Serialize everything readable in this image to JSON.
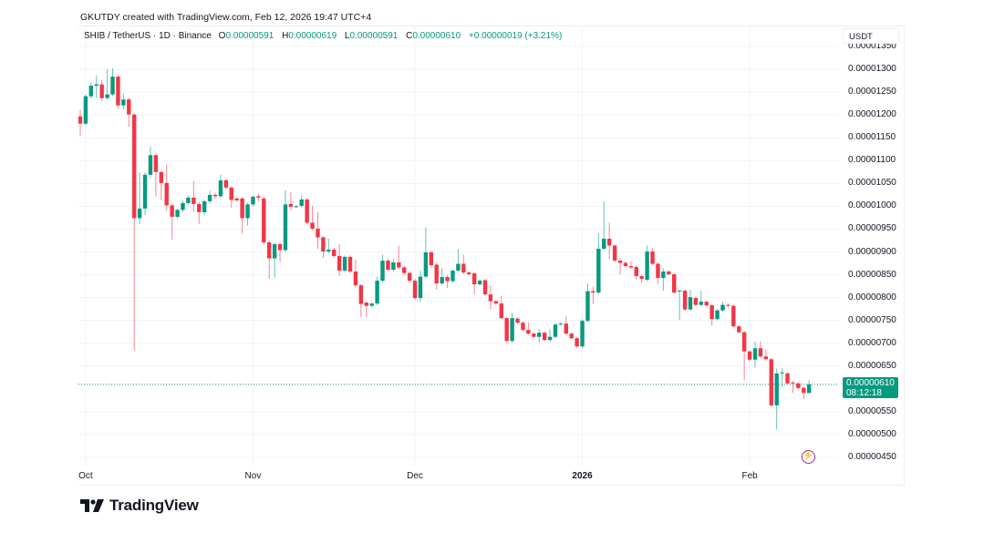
{
  "credit": "GKUTDY created with TradingView.com, Feb 12, 2026 19:47 UTC+4",
  "legend": {
    "symbol": "SHIB / TetherUS · 1D · Binance",
    "o_label": "O",
    "o_value": "0.00000591",
    "h_label": "H",
    "h_value": "0.00000619",
    "l_label": "L",
    "l_value": "0.00000591",
    "c_label": "C",
    "c_value": "0.00000610",
    "change": "+0.00000019 (+3.21%)"
  },
  "price_axis": {
    "unit": "USDT",
    "current_price": "0.00000610",
    "countdown": "08:12:18"
  },
  "brand": "TradingView",
  "colors": {
    "up": "#089981",
    "down": "#f23645",
    "grid": "#f0f3fa",
    "accent": "#9c27b0"
  },
  "icons": {
    "bolt": "lightning-icon",
    "logo": "tradingview-logo"
  },
  "chart_data": {
    "type": "candlestick",
    "title": "SHIB / TetherUS · 1D · Binance",
    "ylim": [
      4.3e-06,
      1.394e-05
    ],
    "y_ticks": [
      "0.00001350",
      "0.00001300",
      "0.00001250",
      "0.00001200",
      "0.00001150",
      "0.00001100",
      "0.00001050",
      "0.00001000",
      "0.00000950",
      "0.00000900",
      "0.00000850",
      "0.00000800",
      "0.00000750",
      "0.00000700",
      "0.00000650",
      "0.00000550",
      "0.00000500",
      "0.00000450"
    ],
    "x_ticks": [
      {
        "label": "Oct",
        "date": "2025-10-01",
        "bold": false
      },
      {
        "label": "Nov",
        "date": "2025-11-01",
        "bold": false
      },
      {
        "label": "Dec",
        "date": "2025-12-01",
        "bold": false
      },
      {
        "label": "2026",
        "date": "2026-01-01",
        "bold": true
      },
      {
        "label": "Feb",
        "date": "2026-02-01",
        "bold": false
      }
    ],
    "grid": true,
    "last_price": 6.1e-06,
    "columns": [
      "date",
      "open",
      "high",
      "low",
      "close"
    ],
    "candles": [
      [
        "2025-09-30",
        1.197e-05,
        1.211e-05,
        1.154e-05,
        1.181e-05
      ],
      [
        "2025-10-01",
        1.181e-05,
        1.245e-05,
        1.177e-05,
        1.241e-05
      ],
      [
        "2025-10-02",
        1.241e-05,
        1.271e-05,
        1.236e-05,
        1.264e-05
      ],
      [
        "2025-10-03",
        1.264e-05,
        1.287e-05,
        1.237e-05,
        1.267e-05
      ],
      [
        "2025-10-04",
        1.267e-05,
        1.277e-05,
        1.23e-05,
        1.237e-05
      ],
      [
        "2025-10-05",
        1.237e-05,
        1.301e-05,
        1.233e-05,
        1.245e-05
      ],
      [
        "2025-10-06",
        1.245e-05,
        1.302e-05,
        1.241e-05,
        1.284e-05
      ],
      [
        "2025-10-07",
        1.284e-05,
        1.287e-05,
        1.214e-05,
        1.221e-05
      ],
      [
        "2025-10-08",
        1.221e-05,
        1.247e-05,
        1.212e-05,
        1.234e-05
      ],
      [
        "2025-10-09",
        1.234e-05,
        1.238e-05,
        1.174e-05,
        1.201e-05
      ],
      [
        "2025-10-10",
        1.201e-05,
        1.204e-05,
        6.84e-06,
        9.74e-06
      ],
      [
        "2025-10-11",
        9.74e-06,
        1.074e-05,
        9.61e-06,
        9.95e-06
      ],
      [
        "2025-10-12",
        9.95e-06,
        1.075e-05,
        9.8e-06,
        1.069e-05
      ],
      [
        "2025-10-13",
        1.069e-05,
        1.131e-05,
        1.062e-05,
        1.112e-05
      ],
      [
        "2025-10-14",
        1.112e-05,
        1.117e-05,
        1.021e-05,
        1.075e-05
      ],
      [
        "2025-10-15",
        1.075e-05,
        1.078e-05,
        1.014e-05,
        1.051e-05
      ],
      [
        "2025-10-16",
        1.051e-05,
        1.091e-05,
        9.91e-06,
        1.002e-05
      ],
      [
        "2025-10-17",
        1.002e-05,
        1.006e-05,
        9.27e-06,
        9.77e-06
      ],
      [
        "2025-10-18",
        9.77e-06,
        9.95e-06,
        9.72e-06,
        9.92e-06
      ],
      [
        "2025-10-19",
        9.92e-06,
        1.012e-05,
        9.88e-06,
        1.007e-05
      ],
      [
        "2025-10-20",
        1.007e-05,
        1.024e-05,
        1.003e-05,
        1.019e-05
      ],
      [
        "2025-10-21",
        1.019e-05,
        1.055e-05,
        9.87e-06,
        1.005e-05
      ],
      [
        "2025-10-22",
        1.005e-05,
        1.01e-05,
        9.61e-06,
        9.87e-06
      ],
      [
        "2025-10-23",
        9.87e-06,
        1.014e-05,
        9.81e-06,
        1.011e-05
      ],
      [
        "2025-10-24",
        1.011e-05,
        1.034e-05,
        1.006e-05,
        1.025e-05
      ],
      [
        "2025-10-25",
        1.025e-05,
        1.03e-05,
        1.016e-05,
        1.022e-05
      ],
      [
        "2025-10-26",
        1.022e-05,
        1.069e-05,
        1.018e-05,
        1.057e-05
      ],
      [
        "2025-10-27",
        1.057e-05,
        1.061e-05,
        1.036e-05,
        1.041e-05
      ],
      [
        "2025-10-28",
        1.041e-05,
        1.044e-05,
        9.97e-06,
        1.014e-05
      ],
      [
        "2025-10-29",
        1.017e-05,
        1.02e-05,
        1.01e-05,
        1.013e-05
      ],
      [
        "2025-10-30",
        1.017e-05,
        1.021e-05,
        9.4e-06,
        9.74e-06
      ],
      [
        "2025-10-31",
        9.74e-06,
        1.008e-05,
        9.58e-06,
        1.004e-05
      ],
      [
        "2025-11-01",
        1.004e-05,
        1.024e-05,
        9.99e-06,
        1.021e-05
      ],
      [
        "2025-11-02",
        1.022e-05,
        1.027e-05,
        1.01e-05,
        1.019e-05
      ],
      [
        "2025-11-03",
        1.017e-05,
        1.022e-05,
        9.16e-06,
        9.21e-06
      ],
      [
        "2025-11-04",
        9.21e-06,
        9.25e-06,
        8.41e-06,
        8.86e-06
      ],
      [
        "2025-11-05",
        8.86e-06,
        9.2e-06,
        8.44e-06,
        9.17e-06
      ],
      [
        "2025-11-06",
        9.17e-06,
        9.21e-06,
        8.78e-06,
        9.04e-06
      ],
      [
        "2025-11-07",
        9.04e-06,
        1.035e-05,
        9e-06,
        1.004e-05
      ],
      [
        "2025-11-08",
        1.005e-05,
        1.031e-05,
        9.9e-06,
        9.99e-06
      ],
      [
        "2025-11-09",
        9.99e-06,
        1.003e-05,
        9.96e-06,
        1e-05
      ],
      [
        "2025-11-10",
        1.001e-05,
        1.024e-05,
        9.97e-06,
        1.015e-05
      ],
      [
        "2025-11-11",
        1.015e-05,
        1.018e-05,
        9.6e-06,
        9.64e-06
      ],
      [
        "2025-11-12",
        9.64e-06,
        1.001e-05,
        9.47e-06,
        9.51e-06
      ],
      [
        "2025-11-13",
        9.51e-06,
        9.87e-06,
        9.07e-06,
        9.32e-06
      ],
      [
        "2025-11-14",
        9.32e-06,
        9.35e-06,
        8.87e-06,
        9.01e-06
      ],
      [
        "2025-11-15",
        9.01e-06,
        9.29e-06,
        8.97e-06,
        9.05e-06
      ],
      [
        "2025-11-16",
        9.05e-06,
        9.09e-06,
        8.87e-06,
        8.91e-06
      ],
      [
        "2025-11-17",
        8.91e-06,
        9.17e-06,
        8.47e-06,
        8.59e-06
      ],
      [
        "2025-11-18",
        8.59e-06,
        8.92e-06,
        8.55e-06,
        8.89e-06
      ],
      [
        "2025-11-19",
        8.89e-06,
        8.93e-06,
        8.53e-06,
        8.57e-06
      ],
      [
        "2025-11-20",
        8.57e-06,
        8.84e-06,
        8.23e-06,
        8.27e-06
      ],
      [
        "2025-11-21",
        8.27e-06,
        8.3e-06,
        7.57e-06,
        7.86e-06
      ],
      [
        "2025-11-22",
        7.89e-06,
        7.92e-06,
        7.57e-06,
        7.82e-06
      ],
      [
        "2025-11-23",
        7.82e-06,
        7.9e-06,
        7.78e-06,
        7.87e-06
      ],
      [
        "2025-11-24",
        7.87e-06,
        8.46e-06,
        7.83e-06,
        8.37e-06
      ],
      [
        "2025-11-25",
        8.37e-06,
        8.94e-06,
        8.33e-06,
        8.81e-06
      ],
      [
        "2025-11-26",
        8.81e-06,
        8.85e-06,
        8.57e-06,
        8.61e-06
      ],
      [
        "2025-11-27",
        8.61e-06,
        8.84e-06,
        8.57e-06,
        8.77e-06
      ],
      [
        "2025-11-28",
        8.77e-06,
        9.14e-06,
        8.62e-06,
        8.66e-06
      ],
      [
        "2025-11-29",
        8.66e-06,
        8.7e-06,
        8.5e-06,
        8.54e-06
      ],
      [
        "2025-11-30",
        8.54e-06,
        8.58e-06,
        8.33e-06,
        8.37e-06
      ],
      [
        "2025-12-01",
        8.37e-06,
        8.41e-06,
        7.95e-06,
        7.99e-06
      ],
      [
        "2025-12-02",
        7.99e-06,
        8.59e-06,
        7.91e-06,
        8.46e-06
      ],
      [
        "2025-12-03",
        8.46e-06,
        9.54e-06,
        8.42e-06,
        8.99e-06
      ],
      [
        "2025-12-04",
        8.99e-06,
        9.03e-06,
        8.66e-06,
        8.71e-06
      ],
      [
        "2025-12-05",
        8.72e-06,
        8.76e-06,
        8.17e-06,
        8.31e-06
      ],
      [
        "2025-12-06",
        8.31e-06,
        8.64e-06,
        8.28e-06,
        8.45e-06
      ],
      [
        "2025-12-07",
        8.45e-06,
        8.49e-06,
        8.21e-06,
        8.36e-06
      ],
      [
        "2025-12-08",
        8.36e-06,
        8.62e-06,
        8.32e-06,
        8.59e-06
      ],
      [
        "2025-12-09",
        8.59e-06,
        9.07e-06,
        8.55e-06,
        8.74e-06
      ],
      [
        "2025-12-10",
        8.74e-06,
        8.94e-06,
        8.51e-06,
        8.55e-06
      ],
      [
        "2025-12-11",
        8.55e-06,
        8.58e-06,
        8.48e-06,
        8.51e-06
      ],
      [
        "2025-12-12",
        8.53e-06,
        8.56e-06,
        8.07e-06,
        8.29e-06
      ],
      [
        "2025-12-13",
        8.29e-06,
        8.4e-06,
        8.26e-06,
        8.37e-06
      ],
      [
        "2025-12-14",
        8.38e-06,
        8.41e-06,
        8.04e-06,
        8.07e-06
      ],
      [
        "2025-12-15",
        8.07e-06,
        8.27e-06,
        7.74e-06,
        7.92e-06
      ],
      [
        "2025-12-16",
        7.92e-06,
        7.95e-06,
        7.84e-06,
        7.87e-06
      ],
      [
        "2025-12-17",
        7.87e-06,
        8.04e-06,
        7.52e-06,
        7.55e-06
      ],
      [
        "2025-12-18",
        7.55e-06,
        7.58e-06,
        7.01e-06,
        7.05e-06
      ],
      [
        "2025-12-19",
        7.05e-06,
        7.67e-06,
        7.01e-06,
        7.55e-06
      ],
      [
        "2025-12-20",
        7.54e-06,
        7.57e-06,
        7.42e-06,
        7.45e-06
      ],
      [
        "2025-12-21",
        7.45e-06,
        7.48e-06,
        7.26e-06,
        7.29e-06
      ],
      [
        "2025-12-22",
        7.29e-06,
        7.46e-06,
        7.18e-06,
        7.21e-06
      ],
      [
        "2025-12-23",
        7.21e-06,
        7.24e-06,
        7.11e-06,
        7.14e-06
      ],
      [
        "2025-12-24",
        7.14e-06,
        7.31e-06,
        7.01e-06,
        7.23e-06
      ],
      [
        "2025-12-25",
        7.23e-06,
        7.26e-06,
        7.04e-06,
        7.07e-06
      ],
      [
        "2025-12-26",
        7.07e-06,
        7.31e-06,
        7.04e-06,
        7.14e-06
      ],
      [
        "2025-12-27",
        7.14e-06,
        7.44e-06,
        7.11e-06,
        7.41e-06
      ],
      [
        "2025-12-28",
        7.41e-06,
        7.46e-06,
        7.38e-06,
        7.43e-06
      ],
      [
        "2025-12-29",
        7.43e-06,
        7.59e-06,
        7.18e-06,
        7.21e-06
      ],
      [
        "2025-12-30",
        7.21e-06,
        7.24e-06,
        7.08e-06,
        7.11e-06
      ],
      [
        "2025-12-31",
        7.11e-06,
        7.14e-06,
        6.9e-06,
        6.93e-06
      ],
      [
        "2026-01-01",
        6.93e-06,
        7.52e-06,
        6.9e-06,
        7.49e-06
      ],
      [
        "2026-01-02",
        7.49e-06,
        8.31e-06,
        7.46e-06,
        8.14e-06
      ],
      [
        "2026-01-03",
        8.14e-06,
        8.24e-06,
        7.86e-06,
        8.11e-06
      ],
      [
        "2026-01-04",
        8.11e-06,
        9.41e-06,
        8.08e-06,
        9.07e-06
      ],
      [
        "2026-01-05",
        9.07e-06,
        1.011e-05,
        9.04e-06,
        9.29e-06
      ],
      [
        "2026-01-06",
        9.29e-06,
        9.64e-06,
        8.84e-06,
        9.14e-06
      ],
      [
        "2026-01-07",
        9.14e-06,
        9.17e-06,
        8.78e-06,
        8.81e-06
      ],
      [
        "2026-01-08",
        8.81e-06,
        8.87e-06,
        8.51e-06,
        8.76e-06
      ],
      [
        "2026-01-09",
        8.76e-06,
        8.79e-06,
        8.66e-06,
        8.69e-06
      ],
      [
        "2026-01-10",
        8.69e-06,
        8.8e-06,
        8.62e-06,
        8.66e-06
      ],
      [
        "2026-01-11",
        8.67e-06,
        8.71e-06,
        8.4e-06,
        8.47e-06
      ],
      [
        "2026-01-12",
        8.47e-06,
        8.5e-06,
        8.32e-06,
        8.41e-06
      ],
      [
        "2026-01-13",
        8.39e-06,
        9.14e-06,
        8.36e-06,
        9.01e-06
      ],
      [
        "2026-01-14",
        9.01e-06,
        9.08e-06,
        8.71e-06,
        8.74e-06
      ],
      [
        "2026-01-15",
        8.74e-06,
        8.77e-06,
        8.31e-06,
        8.43e-06
      ],
      [
        "2026-01-16",
        8.43e-06,
        8.64e-06,
        8.15e-06,
        8.57e-06
      ],
      [
        "2026-01-17",
        8.57e-06,
        8.6e-06,
        8.48e-06,
        8.51e-06
      ],
      [
        "2026-01-18",
        8.51e-06,
        8.54e-06,
        8.08e-06,
        8.11e-06
      ],
      [
        "2026-01-19",
        8.13e-06,
        8.17e-06,
        7.51e-06,
        8.15e-06
      ],
      [
        "2026-01-20",
        8.15e-06,
        8.17e-06,
        7.71e-06,
        7.74e-06
      ],
      [
        "2026-01-21",
        7.74e-06,
        8.17e-06,
        7.71e-06,
        8.01e-06
      ],
      [
        "2026-01-22",
        7.99e-06,
        8.02e-06,
        7.81e-06,
        7.84e-06
      ],
      [
        "2026-01-23",
        7.84e-06,
        8.15e-06,
        7.81e-06,
        7.91e-06
      ],
      [
        "2026-01-24",
        7.91e-06,
        7.94e-06,
        7.8e-06,
        7.83e-06
      ],
      [
        "2026-01-25",
        7.83e-06,
        7.86e-06,
        7.39e-06,
        7.53e-06
      ],
      [
        "2026-01-26",
        7.53e-06,
        7.75e-06,
        7.5e-06,
        7.72e-06
      ],
      [
        "2026-01-27",
        7.72e-06,
        7.91e-06,
        7.69e-06,
        7.84e-06
      ],
      [
        "2026-01-28",
        7.84e-06,
        7.87e-06,
        7.79e-06,
        7.82e-06
      ],
      [
        "2026-01-29",
        7.82e-06,
        7.85e-06,
        7.34e-06,
        7.37e-06
      ],
      [
        "2026-01-30",
        7.37e-06,
        7.4e-06,
        7.21e-06,
        7.24e-06
      ],
      [
        "2026-01-31",
        7.24e-06,
        7.27e-06,
        6.19e-06,
        6.82e-06
      ],
      [
        "2026-02-01",
        6.82e-06,
        6.85e-06,
        6.61e-06,
        6.64e-06
      ],
      [
        "2026-02-02",
        6.64e-06,
        7.04e-06,
        6.47e-06,
        6.89e-06
      ],
      [
        "2026-02-03",
        6.89e-06,
        7.04e-06,
        6.68e-06,
        6.71e-06
      ],
      [
        "2026-02-04",
        6.71e-06,
        6.87e-06,
        6.62e-06,
        6.65e-06
      ],
      [
        "2026-02-05",
        6.65e-06,
        6.68e-06,
        5.61e-06,
        5.64e-06
      ],
      [
        "2026-02-06",
        5.64e-06,
        6.44e-06,
        5.11e-06,
        6.34e-06
      ],
      [
        "2026-02-07",
        6.34e-06,
        6.45e-06,
        6.04e-06,
        6.36e-06
      ],
      [
        "2026-02-08",
        6.34e-06,
        6.37e-06,
        6.09e-06,
        6.12e-06
      ],
      [
        "2026-02-09",
        6.14e-06,
        6.17e-06,
        5.91e-06,
        6.12e-06
      ],
      [
        "2026-02-10",
        6.12e-06,
        6.15e-06,
        5.99e-06,
        6.02e-06
      ],
      [
        "2026-02-11",
        6.02e-06,
        6.05e-06,
        5.77e-06,
        5.91e-06
      ],
      [
        "2026-02-12",
        5.91e-06,
        6.19e-06,
        5.91e-06,
        6.1e-06
      ]
    ]
  }
}
